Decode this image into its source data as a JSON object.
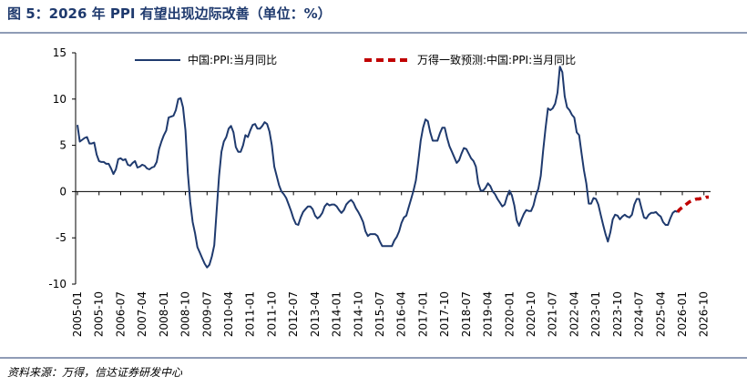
{
  "chart_data": {
    "type": "line",
    "title": "图 5：2026 年 PPI 有望出现边际改善（单位：%）",
    "source": "资料来源：万得，信达证券研发中心",
    "categories": [
      "2005-01",
      null,
      null,
      null,
      null,
      null,
      null,
      null,
      null,
      "2005-10",
      null,
      null,
      null,
      null,
      null,
      null,
      null,
      null,
      "2006-07",
      null,
      null,
      null,
      null,
      null,
      null,
      null,
      null,
      "2007-04",
      null,
      null,
      null,
      null,
      null,
      null,
      null,
      null,
      "2008-01",
      null,
      null,
      null,
      null,
      null,
      null,
      null,
      null,
      "2008-10",
      null,
      null,
      null,
      null,
      null,
      null,
      null,
      null,
      "2009-07",
      null,
      null,
      null,
      null,
      null,
      null,
      null,
      null,
      "2010-04",
      null,
      null,
      null,
      null,
      null,
      null,
      null,
      null,
      "2011-01",
      null,
      null,
      null,
      null,
      null,
      null,
      null,
      null,
      "2011-10",
      null,
      null,
      null,
      null,
      null,
      null,
      null,
      null,
      "2012-07",
      null,
      null,
      null,
      null,
      null,
      null,
      null,
      null,
      "2013-04",
      null,
      null,
      null,
      null,
      null,
      null,
      null,
      null,
      "2014-01",
      null,
      null,
      null,
      null,
      null,
      null,
      null,
      null,
      "2014-10",
      null,
      null,
      null,
      null,
      null,
      null,
      null,
      null,
      "2015-07",
      null,
      null,
      null,
      null,
      null,
      null,
      null,
      null,
      "2016-04",
      null,
      null,
      null,
      null,
      null,
      null,
      null,
      null,
      "2017-01",
      null,
      null,
      null,
      null,
      null,
      null,
      null,
      null,
      "2017-10",
      null,
      null,
      null,
      null,
      null,
      null,
      null,
      null,
      "2018-07",
      null,
      null,
      null,
      null,
      null,
      null,
      null,
      null,
      "2019-04",
      null,
      null,
      null,
      null,
      null,
      null,
      null,
      null,
      "2020-01",
      null,
      null,
      null,
      null,
      null,
      null,
      null,
      null,
      "2020-10",
      null,
      null,
      null,
      null,
      null,
      null,
      null,
      null,
      "2021-07",
      null,
      null,
      null,
      null,
      null,
      null,
      null,
      null,
      "2022-04",
      null,
      null,
      null,
      null,
      null,
      null,
      null,
      null,
      "2023-01",
      null,
      null,
      null,
      null,
      null,
      null,
      null,
      null,
      "2023-10",
      null,
      null,
      null,
      null,
      null,
      null,
      null,
      null,
      "2024-07",
      null,
      null,
      null,
      null,
      null,
      null,
      null,
      null,
      "2025-04",
      null,
      null,
      null,
      null,
      null,
      null,
      null,
      null,
      "2026-01",
      null,
      null,
      null,
      null,
      null,
      null,
      null,
      null,
      "2026-10",
      null,
      null
    ],
    "series": [
      {
        "name": "中国:PPI:当月同比",
        "color": "#1f3a6e",
        "dash": false,
        "values": [
          7.2,
          5.4,
          5.6,
          5.8,
          5.9,
          5.2,
          5.2,
          5.3,
          4.0,
          3.3,
          3.2,
          3.2,
          3.0,
          3.0,
          2.5,
          1.9,
          2.4,
          3.5,
          3.6,
          3.4,
          3.5,
          2.9,
          2.8,
          3.1,
          3.3,
          2.6,
          2.7,
          2.9,
          2.8,
          2.5,
          2.4,
          2.6,
          2.7,
          3.2,
          4.6,
          5.4,
          6.1,
          6.6,
          8.0,
          8.1,
          8.2,
          8.8,
          10.0,
          10.1,
          9.1,
          6.6,
          2.0,
          -1.1,
          -3.3,
          -4.5,
          -6.0,
          -6.6,
          -7.2,
          -7.8,
          -8.2,
          -7.9,
          -7.0,
          -5.8,
          -2.1,
          1.7,
          4.3,
          5.4,
          5.9,
          6.8,
          7.1,
          6.4,
          4.8,
          4.3,
          4.3,
          5.0,
          6.1,
          5.9,
          6.6,
          7.2,
          7.3,
          6.8,
          6.8,
          7.1,
          7.5,
          7.3,
          6.5,
          5.0,
          2.7,
          1.7,
          0.7,
          0.0,
          -0.3,
          -0.7,
          -1.4,
          -2.1,
          -2.9,
          -3.5,
          -3.6,
          -2.8,
          -2.2,
          -1.9,
          -1.6,
          -1.6,
          -1.9,
          -2.6,
          -2.9,
          -2.7,
          -2.3,
          -1.6,
          -1.3,
          -1.5,
          -1.4,
          -1.4,
          -1.6,
          -2.0,
          -2.3,
          -2.0,
          -1.4,
          -1.1,
          -0.9,
          -1.2,
          -1.8,
          -2.2,
          -2.7,
          -3.3,
          -4.3,
          -4.8,
          -4.6,
          -4.6,
          -4.6,
          -4.8,
          -5.4,
          -5.9,
          -5.9,
          -5.9,
          -5.9,
          -5.9,
          -5.3,
          -4.9,
          -4.3,
          -3.4,
          -2.8,
          -2.6,
          -1.7,
          -0.8,
          0.1,
          1.2,
          3.3,
          5.5,
          6.9,
          7.8,
          7.6,
          6.4,
          5.5,
          5.5,
          5.5,
          6.3,
          6.9,
          6.9,
          5.8,
          4.9,
          4.3,
          3.7,
          3.1,
          3.4,
          4.1,
          4.7,
          4.6,
          4.1,
          3.6,
          3.3,
          2.7,
          0.9,
          0.1,
          0.1,
          0.4,
          0.9,
          0.6,
          0.0,
          -0.3,
          -0.8,
          -1.2,
          -1.6,
          -1.4,
          -0.5,
          0.1,
          -0.4,
          -1.5,
          -3.1,
          -3.7,
          -3.0,
          -2.4,
          -2.0,
          -2.1,
          -2.1,
          -1.5,
          -0.4,
          0.3,
          1.7,
          4.4,
          6.8,
          9.0,
          8.8,
          9.0,
          9.5,
          10.7,
          13.5,
          12.9,
          10.3,
          9.1,
          8.8,
          8.3,
          8.0,
          6.4,
          6.1,
          4.2,
          2.3,
          0.9,
          -1.3,
          -1.3,
          -0.7,
          -0.8,
          -1.4,
          -2.5,
          -3.6,
          -4.6,
          -5.4,
          -4.4,
          -3.0,
          -2.5,
          -2.6,
          -3.0,
          -2.7,
          -2.5,
          -2.7,
          -2.8,
          -2.5,
          -1.4,
          -0.8,
          -0.8,
          -1.8,
          -2.8,
          -2.9,
          -2.5,
          -2.3,
          -2.3,
          -2.2,
          -2.5,
          -2.7,
          -3.3,
          -3.6,
          -3.6,
          -2.9,
          -2.3,
          -2.1,
          -2.2,
          null,
          null,
          null,
          null,
          null,
          null,
          null,
          null,
          null,
          null,
          null,
          null,
          null
        ]
      },
      {
        "name": "万得一致预测:中国:PPI:当月同比",
        "color": "#c00000",
        "dash": true,
        "values": [
          null,
          null,
          null,
          null,
          null,
          null,
          null,
          null,
          null,
          null,
          null,
          null,
          null,
          null,
          null,
          null,
          null,
          null,
          null,
          null,
          null,
          null,
          null,
          null,
          null,
          null,
          null,
          null,
          null,
          null,
          null,
          null,
          null,
          null,
          null,
          null,
          null,
          null,
          null,
          null,
          null,
          null,
          null,
          null,
          null,
          null,
          null,
          null,
          null,
          null,
          null,
          null,
          null,
          null,
          null,
          null,
          null,
          null,
          null,
          null,
          null,
          null,
          null,
          null,
          null,
          null,
          null,
          null,
          null,
          null,
          null,
          null,
          null,
          null,
          null,
          null,
          null,
          null,
          null,
          null,
          null,
          null,
          null,
          null,
          null,
          null,
          null,
          null,
          null,
          null,
          null,
          null,
          null,
          null,
          null,
          null,
          null,
          null,
          null,
          null,
          null,
          null,
          null,
          null,
          null,
          null,
          null,
          null,
          null,
          null,
          null,
          null,
          null,
          null,
          null,
          null,
          null,
          null,
          null,
          null,
          null,
          null,
          null,
          null,
          null,
          null,
          null,
          null,
          null,
          null,
          null,
          null,
          null,
          null,
          null,
          null,
          null,
          null,
          null,
          null,
          null,
          null,
          null,
          null,
          null,
          null,
          null,
          null,
          null,
          null,
          null,
          null,
          null,
          null,
          null,
          null,
          null,
          null,
          null,
          null,
          null,
          null,
          null,
          null,
          null,
          null,
          null,
          null,
          null,
          null,
          null,
          null,
          null,
          null,
          null,
          null,
          null,
          null,
          null,
          null,
          null,
          null,
          null,
          null,
          null,
          null,
          null,
          null,
          null,
          null,
          null,
          null,
          null,
          null,
          null,
          null,
          null,
          null,
          null,
          null,
          null,
          null,
          null,
          null,
          null,
          null,
          null,
          null,
          null,
          null,
          null,
          null,
          null,
          null,
          null,
          null,
          null,
          null,
          null,
          null,
          null,
          null,
          null,
          null,
          null,
          null,
          null,
          null,
          null,
          null,
          null,
          null,
          null,
          null,
          null,
          null,
          null,
          null,
          null,
          null,
          null,
          null,
          null,
          null,
          null,
          null,
          null,
          null,
          null,
          null,
          -2.2,
          -1.9,
          -1.7,
          -1.5,
          -1.3,
          -1.1,
          -1.0,
          -0.9,
          -0.8,
          -0.8,
          -0.7,
          -0.7,
          -0.6,
          -0.6
        ]
      }
    ],
    "ylim": [
      -10,
      15
    ],
    "yticks": [
      -10,
      -5,
      0,
      5,
      10,
      15
    ],
    "grid": false,
    "legend": "top"
  }
}
